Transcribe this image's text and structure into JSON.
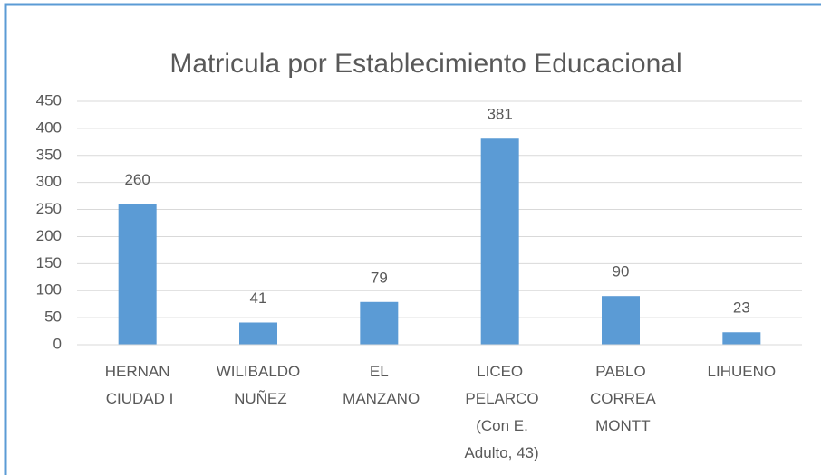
{
  "chart_data": {
    "type": "bar",
    "title": "Matricula por Establecimiento Educacional",
    "categories": [
      "HERNAN CIUDAD I",
      "WILIBALDO NUÑEZ",
      "EL MANZANO",
      "LICEO PELARCO (Con E. Adulto, 43)",
      "PABLO CORREA MONTT",
      "LIHUENO"
    ],
    "values": [
      260,
      41,
      79,
      381,
      90,
      23
    ],
    "color": "#5b9bd5",
    "ylim": [
      0,
      450
    ],
    "yticks": [
      0,
      50,
      100,
      150,
      200,
      250,
      300,
      350,
      400,
      450
    ],
    "grid": true
  }
}
